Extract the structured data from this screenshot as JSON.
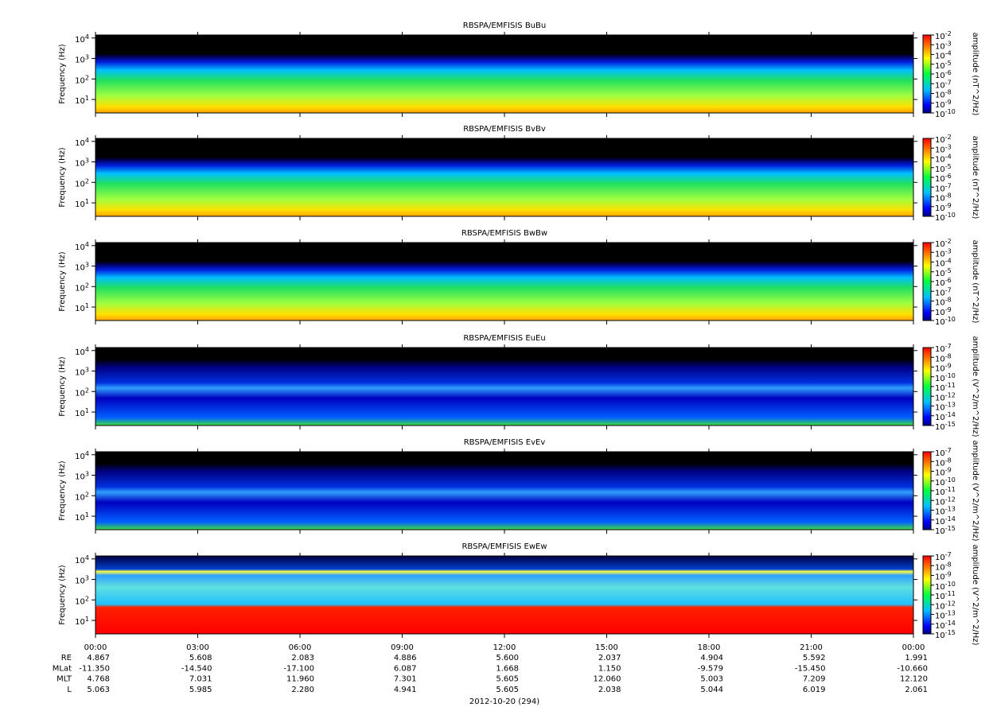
{
  "chart_data": [
    {
      "type": "spectrogram",
      "title": "RBSPA/EMFISIS  BuBu",
      "y_label": "Frequency (Hz)",
      "yscale": "log",
      "ylim": [
        2.2,
        14000
      ],
      "yticks": [
        {
          "value": 10,
          "label": "10^1"
        },
        {
          "value": 100,
          "label": "10^2"
        },
        {
          "value": 1000,
          "label": "10^3"
        },
        {
          "value": 10000,
          "label": "10^4"
        }
      ],
      "colorbar": {
        "label": "amplitude (nT^2/Hz)",
        "scale": "log",
        "lim": [
          1e-10,
          0.01
        ],
        "ticks": [
          {
            "value": 1e-10,
            "label": "10^-10"
          },
          {
            "value": 1e-09,
            "label": "10^-9"
          },
          {
            "value": 1e-08,
            "label": "10^-8"
          },
          {
            "value": 1e-07,
            "label": "10^-7"
          },
          {
            "value": 1e-06,
            "label": "10^-6"
          },
          {
            "value": 1e-05,
            "label": "10^-5"
          },
          {
            "value": 0.0001,
            "label": "10^-4"
          },
          {
            "value": 0.001,
            "label": "10^-3"
          },
          {
            "value": 0.01,
            "label": "10^-2"
          }
        ]
      }
    },
    {
      "type": "spectrogram",
      "title": "RBSPA/EMFISIS  BvBv",
      "y_label": "Frequency (Hz)",
      "yscale": "log",
      "ylim": [
        2.2,
        14000
      ],
      "yticks": [
        {
          "value": 10,
          "label": "10^1"
        },
        {
          "value": 100,
          "label": "10^2"
        },
        {
          "value": 1000,
          "label": "10^3"
        },
        {
          "value": 10000,
          "label": "10^4"
        }
      ],
      "colorbar": {
        "label": "amplitude (nT^2/Hz)",
        "scale": "log",
        "lim": [
          1e-10,
          0.01
        ],
        "ticks": [
          {
            "value": 1e-10,
            "label": "10^-10"
          },
          {
            "value": 1e-09,
            "label": "10^-9"
          },
          {
            "value": 1e-08,
            "label": "10^-8"
          },
          {
            "value": 1e-07,
            "label": "10^-7"
          },
          {
            "value": 1e-06,
            "label": "10^-6"
          },
          {
            "value": 1e-05,
            "label": "10^-5"
          },
          {
            "value": 0.0001,
            "label": "10^-4"
          },
          {
            "value": 0.001,
            "label": "10^-3"
          },
          {
            "value": 0.01,
            "label": "10^-2"
          }
        ]
      }
    },
    {
      "type": "spectrogram",
      "title": "RBSPA/EMFISIS  BwBw",
      "y_label": "Frequency (Hz)",
      "yscale": "log",
      "ylim": [
        2.2,
        14000
      ],
      "yticks": [
        {
          "value": 10,
          "label": "10^1"
        },
        {
          "value": 100,
          "label": "10^2"
        },
        {
          "value": 1000,
          "label": "10^3"
        },
        {
          "value": 10000,
          "label": "10^4"
        }
      ],
      "colorbar": {
        "label": "amplitude (nT^2/Hz)",
        "scale": "log",
        "lim": [
          1e-10,
          0.01
        ],
        "ticks": [
          {
            "value": 1e-10,
            "label": "10^-10"
          },
          {
            "value": 1e-09,
            "label": "10^-9"
          },
          {
            "value": 1e-08,
            "label": "10^-8"
          },
          {
            "value": 1e-07,
            "label": "10^-7"
          },
          {
            "value": 1e-06,
            "label": "10^-6"
          },
          {
            "value": 1e-05,
            "label": "10^-5"
          },
          {
            "value": 0.0001,
            "label": "10^-4"
          },
          {
            "value": 0.001,
            "label": "10^-3"
          },
          {
            "value": 0.01,
            "label": "10^-2"
          }
        ]
      }
    },
    {
      "type": "spectrogram",
      "title": "RBSPA/EMFISIS  EuEu",
      "y_label": "Frequency (Hz)",
      "yscale": "log",
      "ylim": [
        2.2,
        14000
      ],
      "yticks": [
        {
          "value": 10,
          "label": "10^1"
        },
        {
          "value": 100,
          "label": "10^2"
        },
        {
          "value": 1000,
          "label": "10^3"
        },
        {
          "value": 10000,
          "label": "10^4"
        }
      ],
      "colorbar": {
        "label": "amplitude (V^2/m^2/Hz)",
        "scale": "log",
        "lim": [
          1e-15,
          1e-07
        ],
        "ticks": [
          {
            "value": 1e-15,
            "label": "10^-15"
          },
          {
            "value": 1e-14,
            "label": "10^-14"
          },
          {
            "value": 1e-13,
            "label": "10^-13"
          },
          {
            "value": 1e-12,
            "label": "10^-12"
          },
          {
            "value": 1e-11,
            "label": "10^-11"
          },
          {
            "value": 1e-10,
            "label": "10^-10"
          },
          {
            "value": 1e-09,
            "label": "10^-9"
          },
          {
            "value": 1e-08,
            "label": "10^-8"
          },
          {
            "value": 1e-07,
            "label": "10^-7"
          }
        ]
      }
    },
    {
      "type": "spectrogram",
      "title": "RBSPA/EMFISIS  EvEv",
      "y_label": "Frequency (Hz)",
      "yscale": "log",
      "ylim": [
        2.2,
        14000
      ],
      "yticks": [
        {
          "value": 10,
          "label": "10^1"
        },
        {
          "value": 100,
          "label": "10^2"
        },
        {
          "value": 1000,
          "label": "10^3"
        },
        {
          "value": 10000,
          "label": "10^4"
        }
      ],
      "colorbar": {
        "label": "amplitude (V^2/m^2/Hz)",
        "scale": "log",
        "lim": [
          1e-15,
          1e-07
        ],
        "ticks": [
          {
            "value": 1e-15,
            "label": "10^-15"
          },
          {
            "value": 1e-14,
            "label": "10^-14"
          },
          {
            "value": 1e-13,
            "label": "10^-13"
          },
          {
            "value": 1e-12,
            "label": "10^-12"
          },
          {
            "value": 1e-11,
            "label": "10^-11"
          },
          {
            "value": 1e-10,
            "label": "10^-10"
          },
          {
            "value": 1e-09,
            "label": "10^-9"
          },
          {
            "value": 1e-08,
            "label": "10^-8"
          },
          {
            "value": 1e-07,
            "label": "10^-7"
          }
        ]
      }
    },
    {
      "type": "spectrogram",
      "title": "RBSPA/EMFISIS  EwEw",
      "y_label": "Frequency (Hz)",
      "yscale": "log",
      "ylim": [
        2.2,
        14000
      ],
      "yticks": [
        {
          "value": 10,
          "label": "10^1"
        },
        {
          "value": 100,
          "label": "10^2"
        },
        {
          "value": 1000,
          "label": "10^3"
        },
        {
          "value": 10000,
          "label": "10^4"
        }
      ],
      "colorbar": {
        "label": "amplitude (V^2/m^2/Hz)",
        "scale": "log",
        "lim": [
          1e-15,
          1e-07
        ],
        "ticks": [
          {
            "value": 1e-15,
            "label": "10^-15"
          },
          {
            "value": 1e-14,
            "label": "10^-14"
          },
          {
            "value": 1e-13,
            "label": "10^-13"
          },
          {
            "value": 1e-12,
            "label": "10^-12"
          },
          {
            "value": 1e-11,
            "label": "10^-11"
          },
          {
            "value": 1e-10,
            "label": "10^-10"
          },
          {
            "value": 1e-09,
            "label": "10^-9"
          },
          {
            "value": 1e-08,
            "label": "10^-8"
          },
          {
            "value": 1e-07,
            "label": "10^-7"
          }
        ]
      }
    }
  ],
  "x_axis": {
    "label": "2012-10-20 (294)",
    "xlim": [
      0,
      24
    ],
    "xticks": [
      {
        "value": 0,
        "label": "00:00"
      },
      {
        "value": 3,
        "label": "03:00"
      },
      {
        "value": 6,
        "label": "06:00"
      },
      {
        "value": 9,
        "label": "09:00"
      },
      {
        "value": 12,
        "label": "12:00"
      },
      {
        "value": 15,
        "label": "15:00"
      },
      {
        "value": 18,
        "label": "18:00"
      },
      {
        "value": 21,
        "label": "21:00"
      },
      {
        "value": 24,
        "label": "00:00"
      }
    ]
  },
  "ephemeris": [
    {
      "name": "RE",
      "values": [
        "4.867",
        "5.608",
        "2.083",
        "4.886",
        "5.600",
        "2.037",
        "4.904",
        "5.592",
        "1.991"
      ]
    },
    {
      "name": "MLat",
      "values": [
        "-11.350",
        "-14.540",
        "-17.100",
        "6.087",
        "1.668",
        "1.150",
        "-9.579",
        "-15.450",
        "-10.660"
      ]
    },
    {
      "name": "MLT",
      "values": [
        "4.768",
        "7.031",
        "11.960",
        "7.301",
        "5.605",
        "12.060",
        "5.003",
        "7.209",
        "12.120"
      ]
    },
    {
      "name": "L",
      "values": [
        "5.063",
        "5.985",
        "2.280",
        "4.941",
        "5.605",
        "2.038",
        "5.044",
        "6.019",
        "2.061"
      ]
    }
  ]
}
